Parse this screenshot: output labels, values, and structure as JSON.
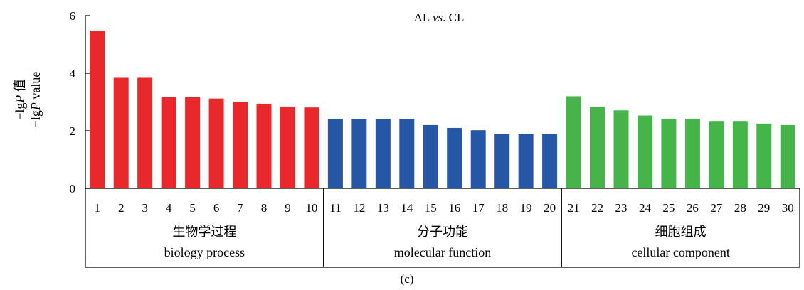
{
  "chart_data": {
    "type": "bar",
    "title": "AL vs. CL",
    "title_parts": [
      "AL ",
      "vs",
      ". CL"
    ],
    "ylabel_lines": [
      {
        "prefix": "−lg",
        "italic": "P",
        "suffix": " 值"
      },
      {
        "prefix": "−lg",
        "italic": "P",
        "suffix": " value"
      }
    ],
    "ylim": [
      0,
      6
    ],
    "yticks": [
      0,
      2,
      4,
      6
    ],
    "categories": [
      "1",
      "2",
      "3",
      "4",
      "5",
      "6",
      "7",
      "8",
      "9",
      "10",
      "11",
      "12",
      "13",
      "14",
      "15",
      "16",
      "17",
      "18",
      "19",
      "20",
      "21",
      "22",
      "23",
      "24",
      "25",
      "26",
      "27",
      "28",
      "29",
      "30"
    ],
    "values": [
      5.48,
      3.84,
      3.84,
      3.18,
      3.18,
      3.12,
      3.0,
      2.94,
      2.83,
      2.81,
      2.41,
      2.41,
      2.41,
      2.41,
      2.2,
      2.1,
      2.02,
      1.89,
      1.89,
      1.89,
      3.2,
      2.83,
      2.71,
      2.53,
      2.41,
      2.41,
      2.34,
      2.34,
      2.25,
      2.2
    ],
    "groups": [
      {
        "name_zh": "生物学过程",
        "name_en": "biology process",
        "start": 0,
        "end": 9,
        "color": "#e8282b"
      },
      {
        "name_zh": "分子功能",
        "name_en": "molecular function",
        "start": 10,
        "end": 19,
        "color": "#2656a6"
      },
      {
        "name_zh": "细胞组成",
        "name_en": "cellular component",
        "start": 20,
        "end": 29,
        "color": "#46b549"
      }
    ],
    "grid": false,
    "legend": "none"
  },
  "caption": "(c)"
}
